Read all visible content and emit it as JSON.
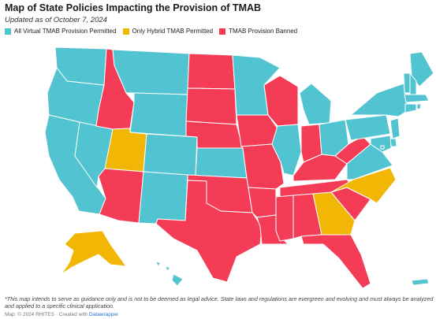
{
  "title": "Map of State Policies Impacting the Provision of TMAB",
  "subtitle": "Updated as of October 7, 2024",
  "legend": [
    {
      "label": "All Virtual TMAB Provision Permitted",
      "color": "#52c3d0"
    },
    {
      "label": "Only Hybrid TMAB Permitted",
      "color": "#f2b705"
    },
    {
      "label": "TMAB Provision Banned",
      "color": "#f43c57"
    }
  ],
  "colors": {
    "all_virtual": "#52c3d0",
    "hybrid": "#f2b705",
    "banned": "#f43c57",
    "border": "#ffffff"
  },
  "states": [
    {
      "id": "WA",
      "policy": "all_virtual"
    },
    {
      "id": "OR",
      "policy": "all_virtual"
    },
    {
      "id": "CA",
      "policy": "all_virtual"
    },
    {
      "id": "NV",
      "policy": "all_virtual"
    },
    {
      "id": "ID",
      "policy": "banned"
    },
    {
      "id": "MT",
      "policy": "all_virtual"
    },
    {
      "id": "WY",
      "policy": "all_virtual"
    },
    {
      "id": "UT",
      "policy": "hybrid"
    },
    {
      "id": "AZ",
      "policy": "banned"
    },
    {
      "id": "CO",
      "policy": "all_virtual"
    },
    {
      "id": "NM",
      "policy": "all_virtual"
    },
    {
      "id": "ND",
      "policy": "banned"
    },
    {
      "id": "SD",
      "policy": "banned"
    },
    {
      "id": "NE",
      "policy": "banned"
    },
    {
      "id": "KS",
      "policy": "all_virtual"
    },
    {
      "id": "OK",
      "policy": "banned"
    },
    {
      "id": "TX",
      "policy": "banned"
    },
    {
      "id": "MN",
      "policy": "all_virtual"
    },
    {
      "id": "IA",
      "policy": "banned"
    },
    {
      "id": "MO",
      "policy": "banned"
    },
    {
      "id": "AR",
      "policy": "banned"
    },
    {
      "id": "LA",
      "policy": "banned"
    },
    {
      "id": "WI",
      "policy": "banned"
    },
    {
      "id": "IL",
      "policy": "all_virtual"
    },
    {
      "id": "MI",
      "policy": "all_virtual"
    },
    {
      "id": "IN",
      "policy": "banned"
    },
    {
      "id": "OH",
      "policy": "all_virtual"
    },
    {
      "id": "KY",
      "policy": "banned"
    },
    {
      "id": "TN",
      "policy": "banned"
    },
    {
      "id": "MS",
      "policy": "banned"
    },
    {
      "id": "AL",
      "policy": "banned"
    },
    {
      "id": "GA",
      "policy": "hybrid"
    },
    {
      "id": "FL",
      "policy": "banned"
    },
    {
      "id": "SC",
      "policy": "banned"
    },
    {
      "id": "NC",
      "policy": "hybrid"
    },
    {
      "id": "VA",
      "policy": "all_virtual"
    },
    {
      "id": "WV",
      "policy": "banned"
    },
    {
      "id": "PA",
      "policy": "all_virtual"
    },
    {
      "id": "NY",
      "policy": "all_virtual"
    },
    {
      "id": "ME",
      "policy": "all_virtual"
    },
    {
      "id": "VT",
      "policy": "all_virtual"
    },
    {
      "id": "NH",
      "policy": "all_virtual"
    },
    {
      "id": "MA",
      "policy": "all_virtual"
    },
    {
      "id": "CT",
      "policy": "all_virtual"
    },
    {
      "id": "RI",
      "policy": "all_virtual"
    },
    {
      "id": "NJ",
      "policy": "all_virtual"
    },
    {
      "id": "DE",
      "policy": "all_virtual"
    },
    {
      "id": "MD",
      "policy": "all_virtual"
    },
    {
      "id": "DC",
      "policy": "all_virtual"
    },
    {
      "id": "AK",
      "policy": "hybrid"
    },
    {
      "id": "HI",
      "policy": "all_virtual"
    },
    {
      "id": "PR",
      "policy": "all_virtual"
    }
  ],
  "note": "*This map intends to serve as guidance only and is not to be deemed as legal advice. State laws and regulations are evergreen and evolving and must always be analyzed and applied to a specific clinical application.",
  "credit": {
    "prefix": "Map: © 2024 RHITES · Created with",
    "link": "Datawrapper"
  }
}
